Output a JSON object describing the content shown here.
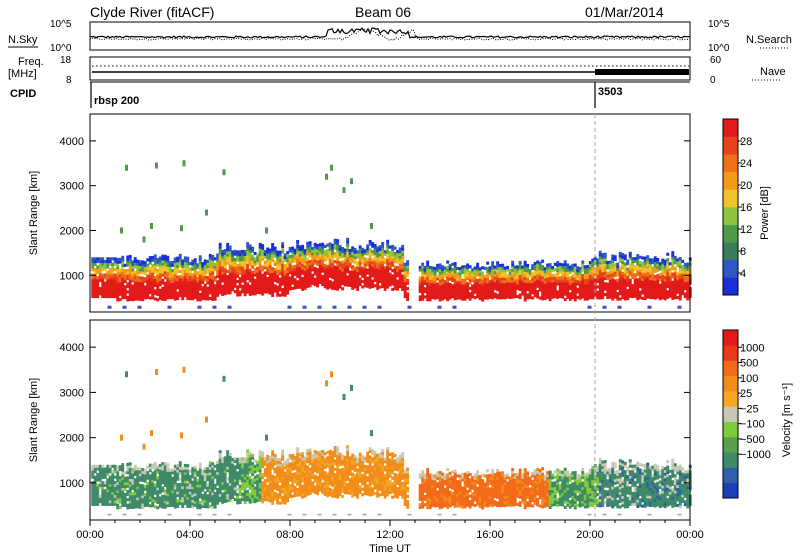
{
  "header": {
    "station": "Clyde River (fitACF)",
    "beam": "Beam 06",
    "date": "01/Mar/2014"
  },
  "top_panels": {
    "nsky_label": "N.Sky",
    "nsky_ticks": [
      "10^5",
      "10^0"
    ],
    "nsearch_label": "N.Search",
    "nsearch_ticks": [
      "10^5",
      "10^0"
    ],
    "freq_label_line1": "Freq.",
    "freq_label_line2": "[MHz]",
    "freq_ticks": [
      "18",
      "8"
    ],
    "nave_label": "Nave",
    "nave_ticks": [
      "60",
      "0"
    ],
    "cpid_label": "CPID",
    "cpid_segments": [
      {
        "start_hour": 0,
        "label": "rbsp 200"
      },
      {
        "start_hour": 20.1,
        "label": "3503"
      }
    ]
  },
  "chart_data": [
    {
      "type": "heatmap",
      "name": "power",
      "ylabel": "Slant Range [km]",
      "yticks": [
        "1000",
        "2000",
        "3000",
        "4000"
      ],
      "ylim": [
        180,
        4600
      ],
      "xlim_hours": [
        0,
        24
      ],
      "colorbar": {
        "label": "Power [dB]",
        "ticks": [
          "4",
          "8",
          "12",
          "16",
          "20",
          "24",
          "28"
        ],
        "range": [
          0,
          32
        ],
        "colors": [
          "#1a2fd8",
          "#2e56c4",
          "#3a7d58",
          "#4f9a4a",
          "#8cc63f",
          "#f2c22a",
          "#f39b16",
          "#f07018",
          "#e8431a",
          "#e31a1a"
        ]
      }
    },
    {
      "type": "heatmap",
      "name": "velocity",
      "ylabel": "Slant Range [km]",
      "yticks": [
        "1000",
        "2000",
        "3000",
        "4000"
      ],
      "ylim": [
        180,
        4600
      ],
      "xlim_hours": [
        0,
        24
      ],
      "colorbar": {
        "label": "Velocity [m s⁻¹]",
        "ticks": [
          "1000",
          "500",
          "100",
          "25",
          "−25",
          "−100",
          "−500",
          "−1000"
        ],
        "colors": [
          "#1b3fb8",
          "#2e5fa8",
          "#3f8a68",
          "#5aa04a",
          "#7fcc3a",
          "#c8c8b4",
          "#f5a623",
          "#f28c1a",
          "#f26a1a",
          "#e83a1a",
          "#e31a1a"
        ]
      }
    }
  ],
  "xaxis": {
    "ticks": [
      "00:00",
      "04:00",
      "08:00",
      "12:00",
      "16:00",
      "20:00",
      "00:00"
    ],
    "label": "Time UT"
  },
  "colors": {
    "dashed_marker": "#aaaaaa",
    "ground_scatter": "#b8b8a8"
  }
}
